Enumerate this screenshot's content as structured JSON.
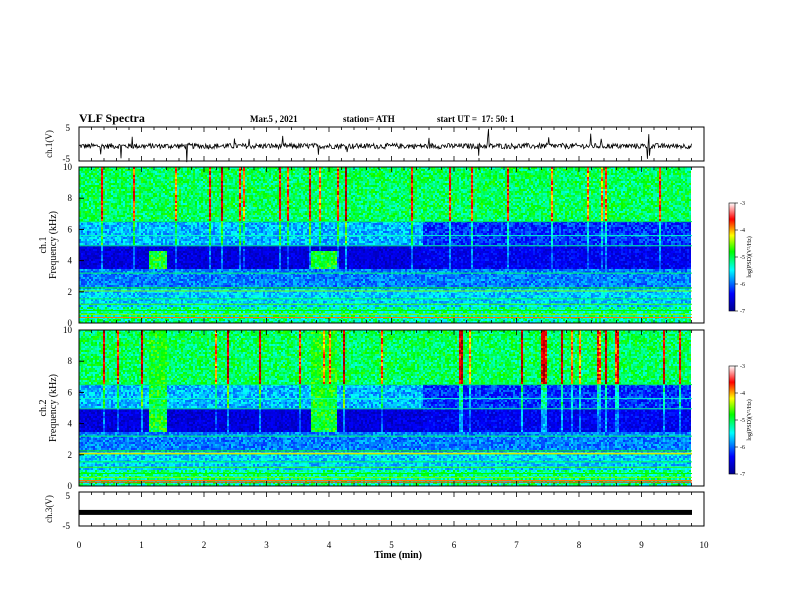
{
  "header": {
    "title": "VLF Spectra",
    "date": "Mar.5 , 2021",
    "station": "station= ATH",
    "start": "start UT =  17: 50: 1"
  },
  "chart_data": [
    {
      "type": "line",
      "panel": "ch1-waveform",
      "ylabel": "ch.1(V)",
      "ylim": [
        -5,
        5
      ],
      "yticks": [
        "5",
        "-5"
      ],
      "xlim": [
        0,
        10
      ],
      "values_note": "noisy waveform near 0 V with sparse spikes",
      "series": [
        {
          "name": "",
          "color": "#000000"
        }
      ]
    },
    {
      "type": "heatmap",
      "panel": "ch1-spectrogram",
      "ylabel": "ch.1\nFrequency (kHz)",
      "ylim": [
        0,
        10
      ],
      "yticks": [
        "0",
        "2",
        "4",
        "6",
        "8",
        "10"
      ],
      "xlim": [
        0,
        10
      ],
      "features": [
        {
          "t_start": 1.1,
          "t_end": 1.4,
          "f_low": 3.5,
          "f_high": 4.6
        },
        {
          "t_start": 3.7,
          "t_end": 4.1,
          "f_low": 3.5,
          "f_high": 4.6
        }
      ],
      "regime_change_min": 5.5,
      "colorbar": {
        "label": "log(PSD)(V²/Hz)",
        "ticks": [
          "-3",
          "-4",
          "-5",
          "-6",
          "-7"
        ],
        "range": [
          -7,
          -3
        ]
      }
    },
    {
      "type": "heatmap",
      "panel": "ch2-spectrogram",
      "ylabel": "ch.2\nFrequency (kHz)",
      "ylim": [
        0,
        10
      ],
      "yticks": [
        "0",
        "2",
        "4",
        "6",
        "8",
        "10"
      ],
      "xlim": [
        0,
        10
      ],
      "features": [
        {
          "t_start": 1.1,
          "t_end": 1.4,
          "f_low": 3.5,
          "f_high": 10
        },
        {
          "t_start": 3.7,
          "t_end": 4.1,
          "f_low": 3.5,
          "f_high": 10
        }
      ],
      "regime_change_min": 5.5,
      "colorbar": {
        "label": "log(PSD)(V²/Hz)",
        "ticks": [
          "-3",
          "-4",
          "-5",
          "-6",
          "-7"
        ],
        "range": [
          -7,
          -3
        ]
      }
    },
    {
      "type": "line",
      "panel": "ch3-waveform",
      "ylabel": "ch.3(V)",
      "ylim": [
        -5,
        5
      ],
      "yticks": [
        "5",
        "-5"
      ],
      "xlim": [
        0,
        10
      ],
      "values_note": "constant level near -1 V (thick flat trace)",
      "series": [
        {
          "name": "",
          "color": "#000000",
          "level": -1
        }
      ]
    }
  ],
  "xaxis": {
    "label": "Time (min)",
    "ticks": [
      "0",
      "1",
      "2",
      "3",
      "4",
      "5",
      "6",
      "7",
      "8",
      "9",
      "10"
    ]
  },
  "colors": {
    "jet": [
      "#00008f",
      "#0000ff",
      "#00ffff",
      "#00ff00",
      "#ffff00",
      "#ff0000",
      "#800000"
    ]
  }
}
